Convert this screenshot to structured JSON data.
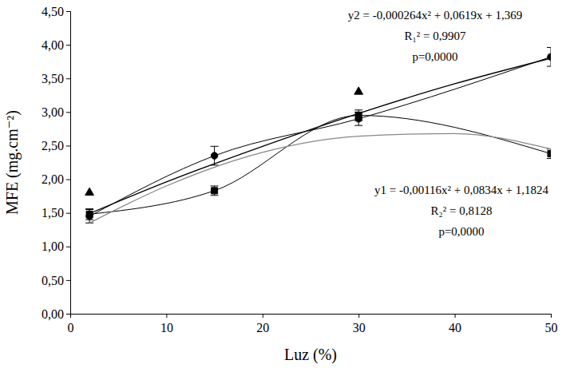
{
  "chart_data": {
    "type": "scatter",
    "x_label": "Luz (%)",
    "y_label": "MFE (mg.cm⁻²)",
    "xlim": [
      0,
      50
    ],
    "xticks": [
      0,
      10,
      20,
      30,
      40,
      50
    ],
    "ylim": [
      0,
      4.5
    ],
    "yticks": [
      {
        "value": 0,
        "label": "0,00"
      },
      {
        "value": 0.5,
        "label": "0,50"
      },
      {
        "value": 1,
        "label": "1,00"
      },
      {
        "value": 1.5,
        "label": "1,50"
      },
      {
        "value": 2,
        "label": "2,00"
      },
      {
        "value": 2.5,
        "label": "2,50"
      },
      {
        "value": 3,
        "label": "3,00"
      },
      {
        "value": 3.5,
        "label": "3,50"
      },
      {
        "value": 4,
        "label": "4,00"
      },
      {
        "value": 4.5,
        "label": "4,50"
      }
    ],
    "grid": false,
    "series": [
      {
        "type": "scatter",
        "marker": "circle",
        "line_style": "solid",
        "color": "#000000",
        "x": [
          2,
          15,
          30,
          50
        ],
        "values": [
          1.45,
          2.35,
          2.9,
          3.82
        ],
        "error": [
          0.1,
          0.14,
          0.1,
          0.14
        ]
      },
      {
        "type": "scatter",
        "marker": "square",
        "line_style": "solid",
        "color": "#000000",
        "x": [
          2,
          15,
          30,
          50
        ],
        "values": [
          1.48,
          1.83,
          2.95,
          2.38
        ],
        "error": [
          0.08,
          0.07,
          0.08,
          0.07
        ]
      },
      {
        "type": "scatter",
        "marker": "triangle",
        "line_style": "none",
        "color": "#000000",
        "x": [
          2,
          30
        ],
        "values": [
          1.8,
          3.3
        ]
      },
      {
        "type": "line",
        "marker": "none",
        "line_style": "solid",
        "color": "#000000",
        "x": [
          2,
          10,
          20,
          30,
          40,
          50
        ],
        "values": [
          1.49,
          1.96,
          2.49,
          2.98,
          3.42,
          3.8
        ]
      },
      {
        "type": "line",
        "marker": "none",
        "line_style": "solid",
        "color": "#888888",
        "x": [
          2,
          10,
          20,
          30,
          40,
          50
        ],
        "values": [
          1.35,
          1.9,
          2.4,
          2.64,
          2.68,
          2.45
        ]
      }
    ],
    "annotations": [
      [
        "y2 = -0,000264x² + 0,0619x + 1,369",
        "R₁² = 0,9907",
        "p=0,0000"
      ],
      [
        "y1 = -0,00116x² + 0,0834x + 1,1824",
        "R₂² = 0,8128",
        "p=0,0000"
      ]
    ]
  }
}
